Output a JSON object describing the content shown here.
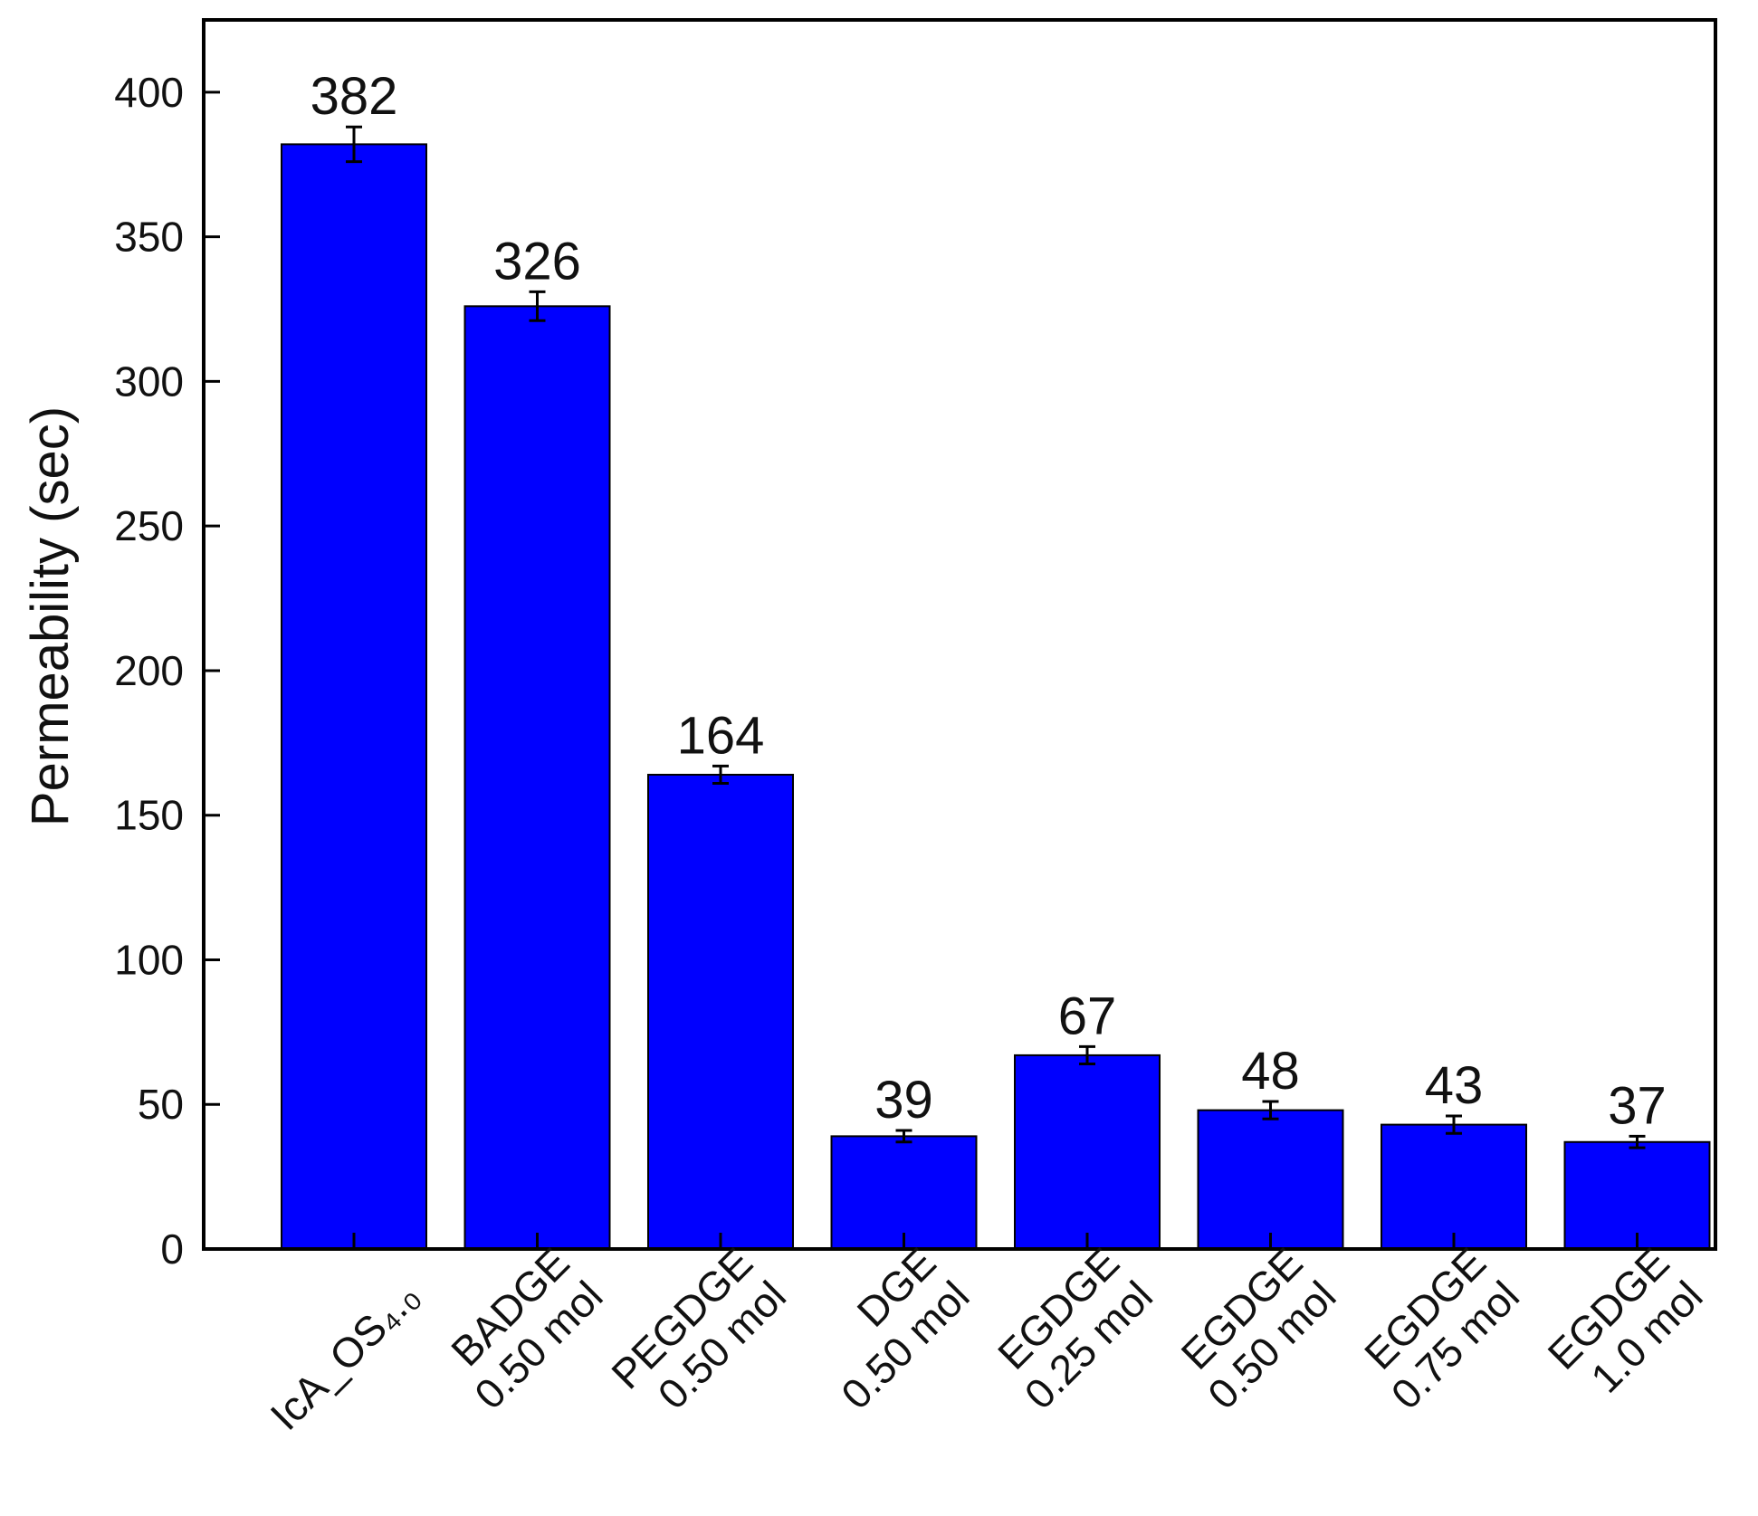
{
  "chart_data": {
    "type": "bar",
    "title": "",
    "xlabel": "",
    "ylabel": "Permeability (sec)",
    "ylim": [
      0,
      425
    ],
    "yticks": [
      0,
      50,
      100,
      150,
      200,
      250,
      300,
      350,
      400
    ],
    "grid": false,
    "categories": [
      {
        "lines": [
          "IcA_OS₄.₀"
        ]
      },
      {
        "lines": [
          "BADGE",
          "0.50 mol"
        ]
      },
      {
        "lines": [
          "PEGDGE",
          "0.50 mol"
        ]
      },
      {
        "lines": [
          "DGE",
          "0.50 mol"
        ]
      },
      {
        "lines": [
          "EGDGE",
          "0.25 mol"
        ]
      },
      {
        "lines": [
          "EGDGE",
          "0.50 mol"
        ]
      },
      {
        "lines": [
          "EGDGE",
          "0.75 mol"
        ]
      },
      {
        "lines": [
          "EGDGE",
          "1.0 mol"
        ]
      }
    ],
    "values": [
      382,
      326,
      164,
      39,
      67,
      48,
      43,
      37
    ],
    "value_labels": [
      "382",
      "326",
      "164",
      "39",
      "67",
      "48",
      "43",
      "37"
    ],
    "error": [
      6,
      5,
      3,
      2,
      3,
      3,
      3,
      2
    ],
    "colors": {
      "bar": "#0000ff",
      "bar_edge": "#000000",
      "axis": "#000000"
    }
  }
}
